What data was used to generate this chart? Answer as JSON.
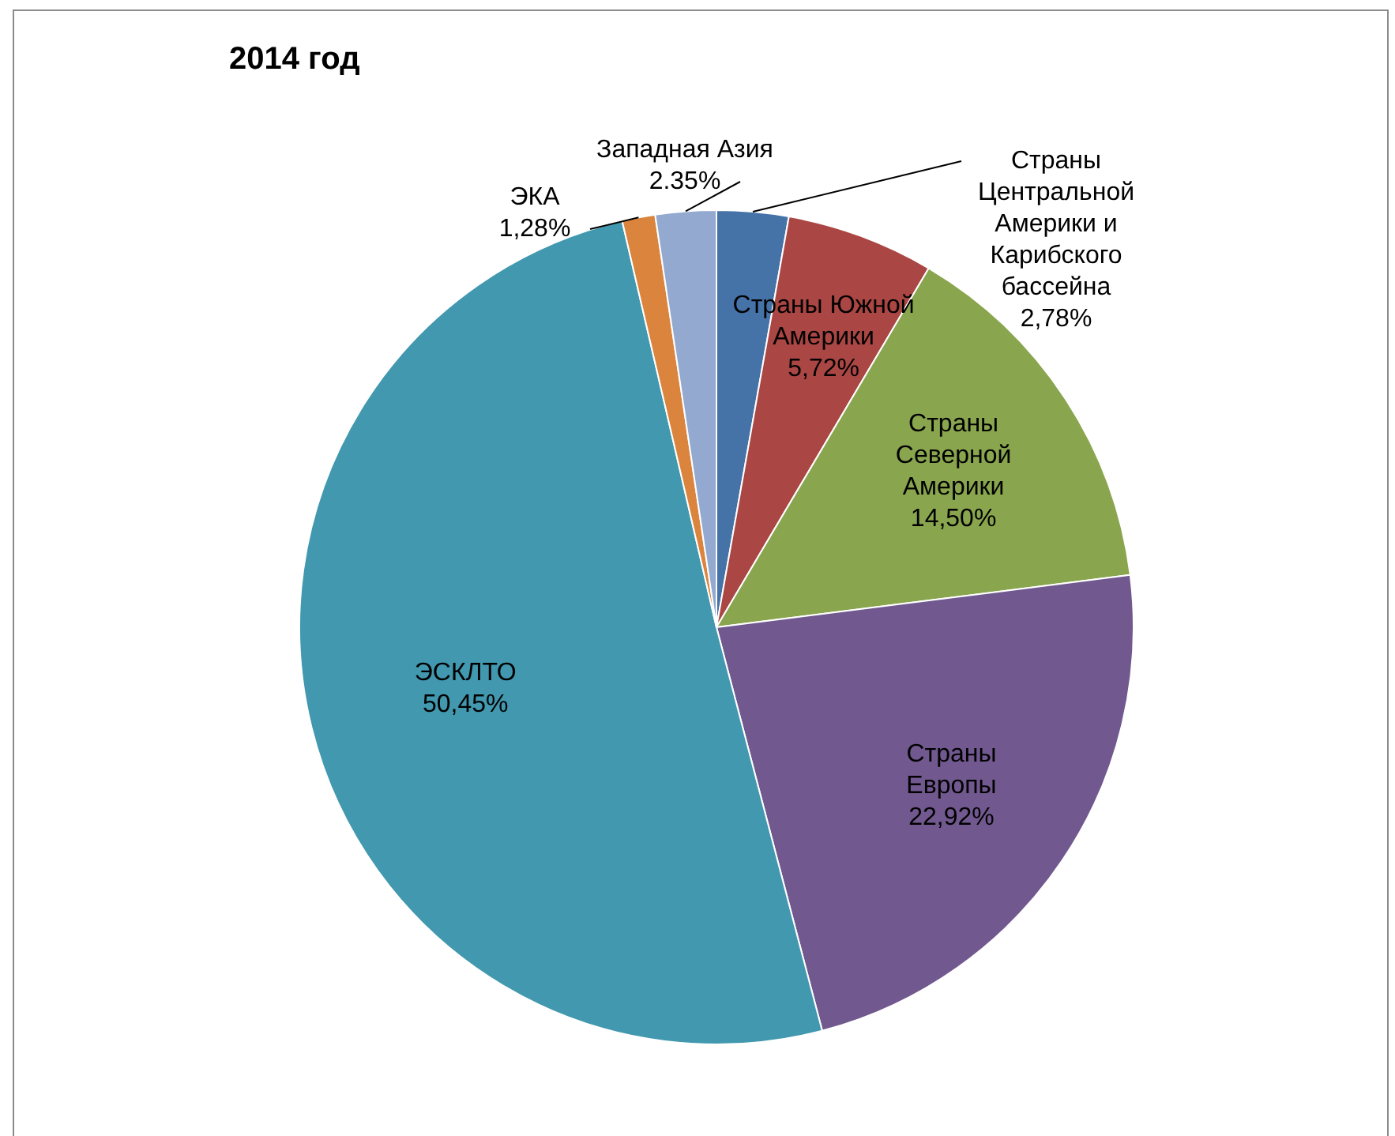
{
  "chart_data": {
    "type": "pie",
    "title": "2014 год",
    "categories": [
      "Страны Центральной Америки и Карибского бассейна",
      "Страны Южной Америки",
      "Страны Северной Америки",
      "Страны Европы",
      "ЭСКЛТО",
      "ЭКА",
      "Западная Азия"
    ],
    "values": [
      2.78,
      5.72,
      14.5,
      22.92,
      50.45,
      1.28,
      2.35
    ],
    "value_labels": [
      "2,78%",
      "5,72%",
      "14,50%",
      "22,92%",
      "50,45%",
      "1,28%",
      "2.35%"
    ],
    "colors": [
      "#4572a7",
      "#aa4643",
      "#89a54e",
      "#71588f",
      "#4198af",
      "#db843d",
      "#93a9cf"
    ],
    "legend": false
  }
}
